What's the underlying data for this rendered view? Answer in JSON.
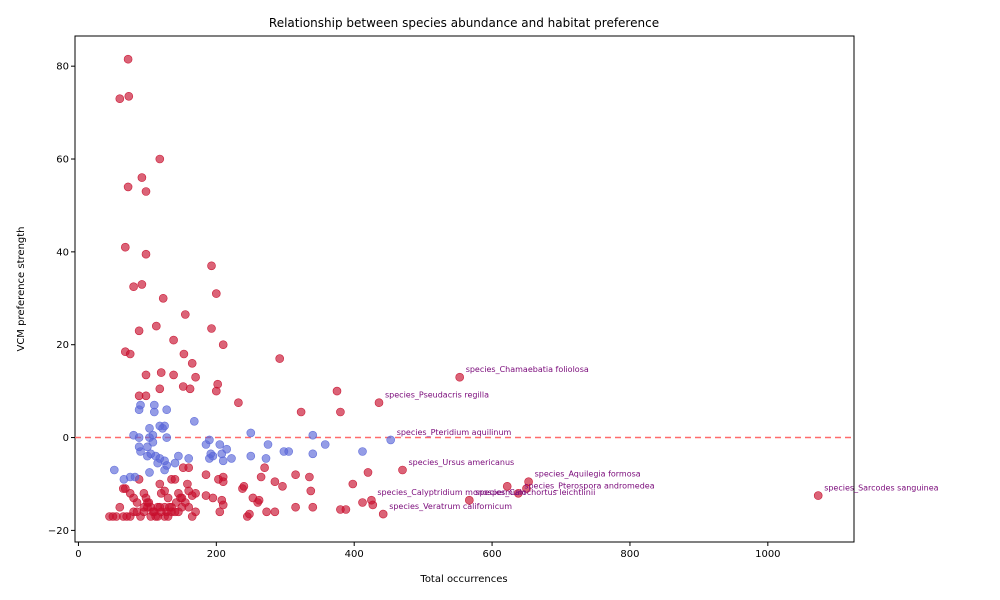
{
  "chart_data": {
    "type": "scatter",
    "title": "Relationship between species abundance and habitat preference",
    "xlabel": "Total occurrences",
    "ylabel": "VCM preference strength",
    "xlim": [
      -5,
      1125
    ],
    "ylim": [
      -22.5,
      86.5
    ],
    "xticks": [
      0,
      200,
      400,
      600,
      800,
      1000
    ],
    "yticks": [
      -20,
      0,
      20,
      40,
      60,
      80
    ],
    "grid": false,
    "reference_line": {
      "y": 0,
      "color": "#ff6b6b",
      "style": "dashed"
    },
    "colors": {
      "positive": "#c8102e",
      "negative": "#5a67d8"
    },
    "series": [
      {
        "color_key": "positive",
        "points": [
          [
            72,
            81.5
          ],
          [
            60,
            73
          ],
          [
            73,
            73.5
          ],
          [
            118,
            60
          ],
          [
            92,
            56
          ],
          [
            72,
            54
          ],
          [
            98,
            53
          ],
          [
            68,
            41
          ],
          [
            98,
            39.5
          ],
          [
            80,
            32.5
          ],
          [
            92,
            33
          ],
          [
            123,
            30
          ],
          [
            193,
            37
          ],
          [
            200,
            31
          ],
          [
            155,
            26.5
          ],
          [
            113,
            24
          ],
          [
            88,
            23
          ],
          [
            193,
            23.5
          ],
          [
            138,
            21
          ],
          [
            210,
            20
          ],
          [
            68,
            18.5
          ],
          [
            75,
            18
          ],
          [
            153,
            18
          ],
          [
            165,
            16
          ],
          [
            292,
            17
          ],
          [
            98,
            13.5
          ],
          [
            120,
            14
          ],
          [
            138,
            13.5
          ],
          [
            170,
            13
          ],
          [
            152,
            11
          ],
          [
            118,
            10.5
          ],
          [
            162,
            10.5
          ],
          [
            200,
            10
          ],
          [
            202,
            11.5
          ],
          [
            375,
            10
          ],
          [
            553,
            13
          ],
          [
            232,
            7.5
          ],
          [
            436,
            7.5
          ],
          [
            323,
            5.5
          ],
          [
            380,
            5.5
          ],
          [
            88,
            9
          ],
          [
            98,
            9
          ],
          [
            270,
            -6.5
          ],
          [
            470,
            -7
          ],
          [
            315,
            -8
          ],
          [
            335,
            -8.5
          ],
          [
            420,
            -7.5
          ],
          [
            265,
            -8.5
          ],
          [
            285,
            -9.5
          ],
          [
            398,
            -10
          ],
          [
            653,
            -9.5
          ],
          [
            622,
            -10.5
          ],
          [
            210,
            -8.5
          ],
          [
            210,
            -9.5
          ],
          [
            185,
            -8
          ],
          [
            203,
            -9
          ],
          [
            135,
            -9
          ],
          [
            140,
            -9
          ],
          [
            158,
            -10
          ],
          [
            170,
            -12
          ],
          [
            165,
            -12.5
          ],
          [
            160,
            -11.5
          ],
          [
            185,
            -12.5
          ],
          [
            195,
            -13
          ],
          [
            208,
            -13.5
          ],
          [
            210,
            -14.5
          ],
          [
            238,
            -11
          ],
          [
            240,
            -10.5
          ],
          [
            253,
            -13
          ],
          [
            260,
            -14
          ],
          [
            262,
            -13.5
          ],
          [
            296,
            -10.5
          ],
          [
            337,
            -11.5
          ],
          [
            315,
            -15
          ],
          [
            340,
            -15
          ],
          [
            380,
            -15.5
          ],
          [
            388,
            -15.5
          ],
          [
            412,
            -14
          ],
          [
            425,
            -13.5
          ],
          [
            427,
            -14.5
          ],
          [
            442,
            -16.5
          ],
          [
            567,
            -13.5
          ],
          [
            638,
            -12
          ],
          [
            650,
            -11
          ],
          [
            1073,
            -12.5
          ],
          [
            205,
            -16
          ],
          [
            248,
            -16.5
          ],
          [
            245,
            -17
          ],
          [
            273,
            -16
          ],
          [
            285,
            -16
          ],
          [
            125,
            -11.5
          ],
          [
            118,
            -10
          ],
          [
            120,
            -12
          ],
          [
            130,
            -13
          ],
          [
            145,
            -12
          ],
          [
            150,
            -13
          ],
          [
            142,
            -14
          ],
          [
            135,
            -15
          ],
          [
            125,
            -15
          ],
          [
            115,
            -15
          ],
          [
            105,
            -15
          ],
          [
            95,
            -15
          ],
          [
            85,
            -14
          ],
          [
            80,
            -13
          ],
          [
            75,
            -12
          ],
          [
            68,
            -11
          ],
          [
            65,
            -11
          ],
          [
            60,
            -15
          ],
          [
            55,
            -17
          ],
          [
            50,
            -17
          ],
          [
            45,
            -17
          ],
          [
            65,
            -17
          ],
          [
            70,
            -17
          ],
          [
            75,
            -17
          ],
          [
            80,
            -16
          ],
          [
            85,
            -16
          ],
          [
            90,
            -17
          ],
          [
            95,
            -16
          ],
          [
            100,
            -15
          ],
          [
            105,
            -17
          ],
          [
            110,
            -16
          ],
          [
            115,
            -17
          ],
          [
            120,
            -16
          ],
          [
            125,
            -17
          ],
          [
            130,
            -17
          ],
          [
            135,
            -16
          ],
          [
            145,
            -16
          ],
          [
            150,
            -15
          ],
          [
            155,
            -14
          ],
          [
            160,
            -15
          ],
          [
            165,
            -17
          ],
          [
            170,
            -16
          ],
          [
            88,
            -9
          ],
          [
            95,
            -12
          ],
          [
            98,
            -13
          ],
          [
            100,
            -14
          ],
          [
            102,
            -14
          ],
          [
            108,
            -16
          ],
          [
            112,
            -17
          ],
          [
            118,
            -15
          ],
          [
            128,
            -16
          ],
          [
            132,
            -15
          ],
          [
            140,
            -16
          ],
          [
            148,
            -13
          ],
          [
            152,
            -6.5
          ],
          [
            160,
            -6.5
          ]
        ]
      },
      {
        "color_key": "negative",
        "points": [
          [
            90,
            7
          ],
          [
            88,
            6
          ],
          [
            110,
            7
          ],
          [
            110,
            5.5
          ],
          [
            128,
            6
          ],
          [
            168,
            3.5
          ],
          [
            118,
            2.5
          ],
          [
            122,
            2
          ],
          [
            125,
            2.5
          ],
          [
            103,
            2
          ],
          [
            80,
            0.5
          ],
          [
            88,
            0
          ],
          [
            103,
            0
          ],
          [
            108,
            0.5
          ],
          [
            128,
            0
          ],
          [
            250,
            1
          ],
          [
            340,
            0.5
          ],
          [
            453,
            -0.5
          ],
          [
            358,
            -1.5
          ],
          [
            275,
            -1.5
          ],
          [
            205,
            -1.5
          ],
          [
            190,
            -0.5
          ],
          [
            185,
            -1.5
          ],
          [
            215,
            -2.5
          ],
          [
            208,
            -3.5
          ],
          [
            195,
            -4
          ],
          [
            192,
            -3.5
          ],
          [
            190,
            -4.5
          ],
          [
            210,
            -5
          ],
          [
            222,
            -4.5
          ],
          [
            250,
            -4
          ],
          [
            272,
            -4.5
          ],
          [
            298,
            -3
          ],
          [
            305,
            -3
          ],
          [
            340,
            -3.5
          ],
          [
            412,
            -3
          ],
          [
            100,
            -2
          ],
          [
            88,
            -2
          ],
          [
            90,
            -3
          ],
          [
            105,
            -3.5
          ],
          [
            108,
            -1
          ],
          [
            112,
            -4
          ],
          [
            118,
            -4.5
          ],
          [
            125,
            -5
          ],
          [
            115,
            -5.5
          ],
          [
            128,
            -6
          ],
          [
            125,
            -7
          ],
          [
            103,
            -7.5
          ],
          [
            100,
            -4
          ],
          [
            145,
            -4
          ],
          [
            140,
            -5.5
          ],
          [
            160,
            -4.5
          ],
          [
            52,
            -7
          ],
          [
            66,
            -9
          ],
          [
            75,
            -8.5
          ],
          [
            82,
            -8.5
          ]
        ]
      }
    ],
    "annotations": [
      {
        "label": "species_Chamaebatia foliolosa",
        "x": 553,
        "y": 13
      },
      {
        "label": "species_Pseudacris regilla",
        "x": 436,
        "y": 7.5
      },
      {
        "label": "species_Pteridium aquilinum",
        "x": 453,
        "y": -0.5
      },
      {
        "label": "species_Ursus americanus",
        "x": 470,
        "y": -7
      },
      {
        "label": "species_Aquilegia formosa",
        "x": 653,
        "y": -9.5
      },
      {
        "label": "species_Pterospora andromedea",
        "x": 638,
        "y": -12
      },
      {
        "label": "species_Sarcodes sanguinea",
        "x": 1073,
        "y": -12.5
      },
      {
        "label": "species_Calyptridium monospermum",
        "x": 425,
        "y": -13.5
      },
      {
        "label": "species_Calochortus leichtlinii",
        "x": 567,
        "y": -13.5
      },
      {
        "label": "species_Veratrum californicum",
        "x": 442,
        "y": -16.5
      }
    ]
  }
}
